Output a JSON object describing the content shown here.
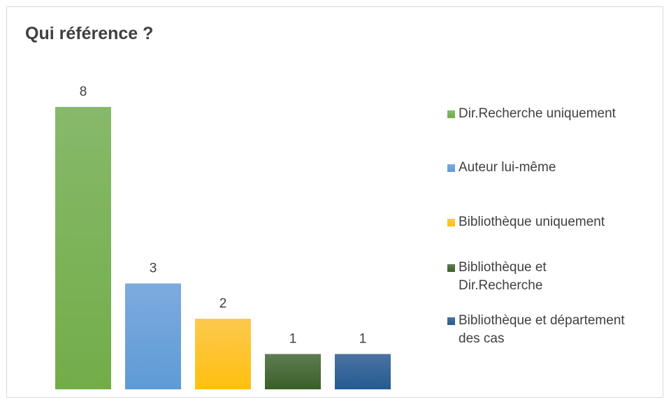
{
  "chart_data": {
    "type": "bar",
    "title": "Qui référence ?",
    "categories": [
      "Dir.Recherche uniquement",
      "Auteur lui-même",
      "Bibliothèque uniquement",
      "Bibliothèque et Dir.Recherche",
      "Bibliothèque et département des cas"
    ],
    "values": [
      8,
      3,
      2,
      1,
      1
    ],
    "colors": [
      "#72ad49",
      "#5e9bd6",
      "#fec00f",
      "#3a5f27",
      "#245b91"
    ],
    "colors_light": [
      "#87b96a",
      "#7dabdf",
      "#fdc94e",
      "#5e7c52",
      "#4a72a0"
    ],
    "ylim": [
      0,
      8
    ],
    "xlabel": "",
    "ylabel": "",
    "grid": false,
    "legend_position": "right",
    "legend_lines": [
      [
        "Dir.Recherche uniquement"
      ],
      [
        "Auteur lui-même"
      ],
      [
        "Bibliothèque uniquement"
      ],
      [
        "Bibliothèque et",
        "Dir.Recherche"
      ],
      [
        "Bibliothèque et département",
        "des cas"
      ]
    ]
  }
}
